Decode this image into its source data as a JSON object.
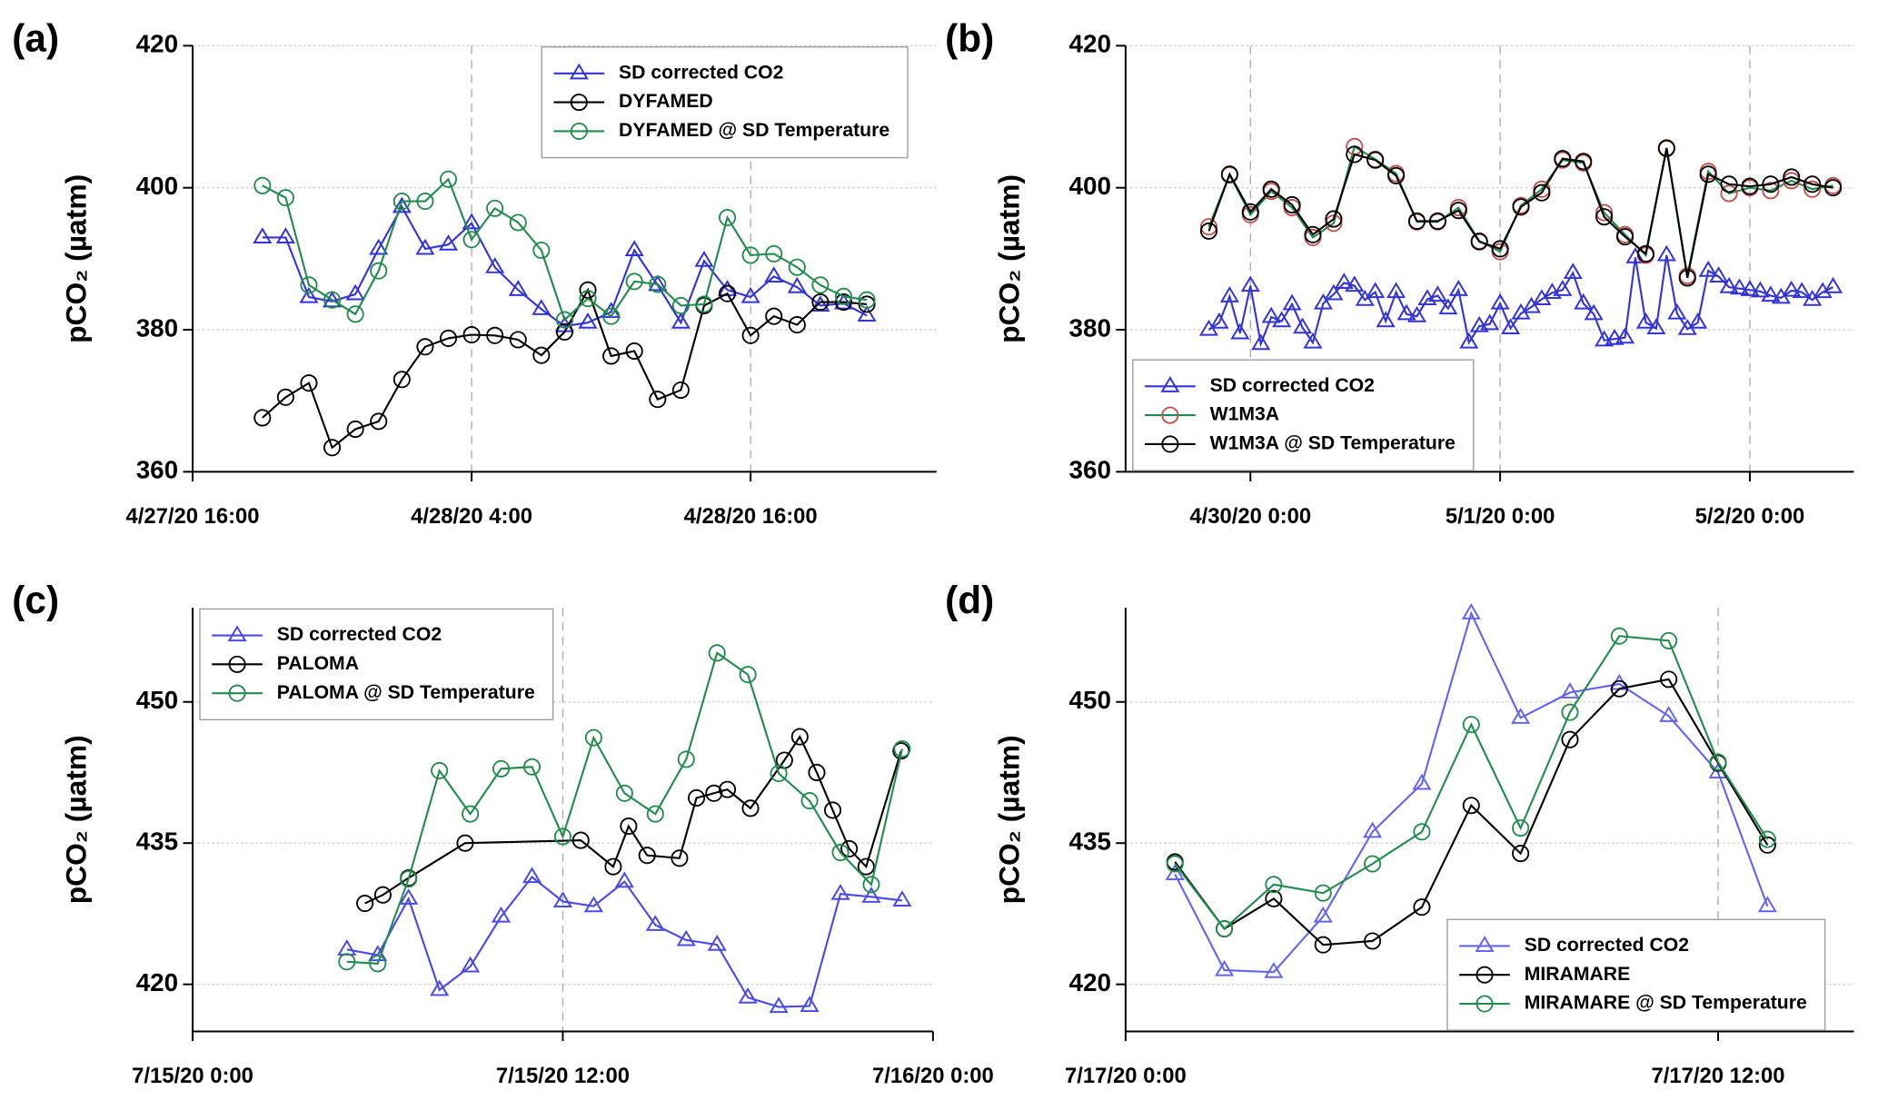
{
  "chart_data": [
    {
      "type": "line",
      "panel_label": "(a)",
      "ylabel": "pCO₂ (µatm)",
      "legend": "upper right",
      "grid": true,
      "x_grid": "dashed",
      "xlim": [
        "2020-04-27T16:00",
        "2020-04-29T00:00"
      ],
      "xticks": [
        {
          "value": "2020-04-27T16:00",
          "label": "4/27/20 16:00"
        },
        {
          "value": "2020-04-28T04:00",
          "label": "4/28/20 4:00"
        },
        {
          "value": "2020-04-28T16:00",
          "label": "4/28/20 16:00"
        }
      ],
      "ylim": [
        360,
        420
      ],
      "yticks": [
        360,
        380,
        400,
        420
      ],
      "x": [
        "2020-04-27T19:00",
        "2020-04-27T20:00",
        "2020-04-27T21:00",
        "2020-04-27T22:00",
        "2020-04-27T23:00",
        "2020-04-28T00:00",
        "2020-04-28T01:00",
        "2020-04-28T02:00",
        "2020-04-28T03:00",
        "2020-04-28T04:00",
        "2020-04-28T05:00",
        "2020-04-28T06:00",
        "2020-04-28T07:00",
        "2020-04-28T08:00",
        "2020-04-28T09:00",
        "2020-04-28T10:00",
        "2020-04-28T11:00",
        "2020-04-28T12:00",
        "2020-04-28T13:00",
        "2020-04-28T14:00",
        "2020-04-28T15:00",
        "2020-04-28T16:00",
        "2020-04-28T17:00",
        "2020-04-28T18:00",
        "2020-04-28T19:00",
        "2020-04-28T20:00",
        "2020-04-28T21:00"
      ],
      "series": [
        {
          "name": "SD corrected CO2",
          "color": "#3434d6",
          "marker": "triangle",
          "values": [
            393,
            393,
            384.6,
            384,
            385,
            391.4,
            397.3,
            391.4,
            392,
            395,
            388.8,
            385.6,
            382.9,
            380.5,
            381,
            382.5,
            391.2,
            386.3,
            381,
            389.7,
            385.6,
            384.6,
            387.5,
            386,
            383.4,
            383.7,
            382
          ]
        },
        {
          "name": "DYFAMED",
          "color": "#000000",
          "marker": "circle",
          "values": [
            367.6,
            370.5,
            372.5,
            363.4,
            366,
            367.1,
            373,
            377.6,
            378.8,
            379.3,
            379.2,
            378.6,
            376.4,
            379.7,
            385.6,
            376.3,
            377,
            370.2,
            371.5,
            383.4,
            385.1,
            379.2,
            381.9,
            380.7,
            383.9,
            383.9,
            383.6
          ]
        },
        {
          "name": "DYFAMED @ SD Temperature",
          "color": "#238b4e",
          "marker": "circle",
          "values": [
            400.3,
            398.6,
            386.3,
            384.2,
            382.2,
            388.3,
            398.1,
            398.1,
            401.2,
            392.7,
            397.1,
            395.1,
            391.2,
            381.4,
            384.4,
            381.9,
            386.8,
            386.4,
            383.4,
            383.6,
            395.8,
            390.5,
            390.7,
            388.8,
            386.3,
            384.7,
            384.2
          ]
        }
      ]
    },
    {
      "type": "line",
      "panel_label": "(b)",
      "ylabel": "pCO₂ (µatm)",
      "legend": "lower left",
      "grid": true,
      "x_grid": "dashed",
      "xlim": [
        "2020-04-29T12:00",
        "2020-05-02T10:00"
      ],
      "xticks": [
        {
          "value": "2020-04-30T00:00",
          "label": "4/30/20 0:00"
        },
        {
          "value": "2020-05-01T00:00",
          "label": "5/1/20 0:00"
        },
        {
          "value": "2020-05-02T00:00",
          "label": "5/2/20 0:00"
        }
      ],
      "ylim": [
        360,
        420
      ],
      "yticks": [
        360,
        380,
        400,
        420
      ],
      "series": [
        {
          "name": "SD corrected CO2",
          "color": "#3434d6",
          "marker": "triangle",
          "x": [
            "2020-04-29T20:00",
            "2020-04-29T21:00",
            "2020-04-29T22:00",
            "2020-04-29T23:00",
            "2020-04-30T00:00",
            "2020-04-30T01:00",
            "2020-04-30T02:00",
            "2020-04-30T03:00",
            "2020-04-30T04:00",
            "2020-04-30T05:00",
            "2020-04-30T06:00",
            "2020-04-30T07:00",
            "2020-04-30T08:00",
            "2020-04-30T09:00",
            "2020-04-30T10:00",
            "2020-04-30T11:00",
            "2020-04-30T12:00",
            "2020-04-30T13:00",
            "2020-04-30T14:00",
            "2020-04-30T15:00",
            "2020-04-30T16:00",
            "2020-04-30T17:00",
            "2020-04-30T18:00",
            "2020-04-30T19:00",
            "2020-04-30T20:00",
            "2020-04-30T21:00",
            "2020-04-30T22:00",
            "2020-04-30T23:00",
            "2020-05-01T00:00",
            "2020-05-01T01:00",
            "2020-05-01T02:00",
            "2020-05-01T03:00",
            "2020-05-01T04:00",
            "2020-05-01T05:00",
            "2020-05-01T06:00",
            "2020-05-01T07:00",
            "2020-05-01T08:00",
            "2020-05-01T09:00",
            "2020-05-01T10:00",
            "2020-05-01T11:00",
            "2020-05-01T12:00",
            "2020-05-01T13:00",
            "2020-05-01T14:00",
            "2020-05-01T15:00",
            "2020-05-01T16:00",
            "2020-05-01T17:00",
            "2020-05-01T18:00",
            "2020-05-01T19:00",
            "2020-05-01T20:00",
            "2020-05-01T21:00",
            "2020-05-01T22:00",
            "2020-05-01T23:00",
            "2020-05-02T00:00",
            "2020-05-02T01:00",
            "2020-05-02T02:00",
            "2020-05-02T03:00",
            "2020-05-02T04:00",
            "2020-05-02T05:00",
            "2020-05-02T06:00",
            "2020-05-02T07:00",
            "2020-05-02T08:00"
          ],
          "values": [
            380,
            381,
            384.7,
            379.5,
            386.2,
            378,
            381.8,
            381.2,
            383.6,
            380.3,
            378.2,
            383.7,
            385,
            386.6,
            386.2,
            384.2,
            385.3,
            381.2,
            385.3,
            382.2,
            381.9,
            384.3,
            384.8,
            383,
            385.6,
            378.2,
            380.5,
            380.8,
            383.7,
            380.2,
            382.3,
            383.2,
            384.3,
            385.2,
            385.6,
            388,
            383.7,
            382.2,
            378.5,
            378.7,
            378.9,
            390.2,
            381,
            380.2,
            390.5,
            382.3,
            380.1,
            381,
            388.3,
            387.5,
            386,
            385.8,
            385.6,
            385.4,
            384.8,
            384.5,
            385.5,
            385.3,
            384.2,
            385.3,
            386
          ]
        },
        {
          "name": "W1M3A",
          "color": "#238b4e",
          "marker": "circle",
          "marker_color": "#c0504d",
          "x": [
            "2020-04-29T20:00",
            "2020-04-29T22:00",
            "2020-04-30T00:00",
            "2020-04-30T02:00",
            "2020-04-30T04:00",
            "2020-04-30T06:00",
            "2020-04-30T08:00",
            "2020-04-30T10:00",
            "2020-04-30T12:00",
            "2020-04-30T14:00",
            "2020-04-30T16:00",
            "2020-04-30T18:00",
            "2020-04-30T20:00",
            "2020-04-30T22:00",
            "2020-05-01T00:00",
            "2020-05-01T02:00",
            "2020-05-01T04:00",
            "2020-05-01T06:00",
            "2020-05-01T08:00",
            "2020-05-01T10:00",
            "2020-05-01T12:00",
            "2020-05-01T14:00",
            "2020-05-01T16:00",
            "2020-05-01T18:00",
            "2020-05-01T20:00",
            "2020-05-01T22:00",
            "2020-05-02T00:00",
            "2020-05-02T02:00",
            "2020-05-02T04:00",
            "2020-05-02T06:00",
            "2020-05-02T08:00"
          ],
          "values": [
            394.5,
            401.8,
            396.2,
            399.5,
            397.2,
            393,
            395,
            405.8,
            404,
            402,
            395.2,
            395.2,
            397.2,
            392.5,
            391,
            397.5,
            399.8,
            403.9,
            403.5,
            396.5,
            393.4,
            390.5,
            405.5,
            387.6,
            402.3,
            399.2,
            400,
            399.6,
            401,
            399.8,
            400.3
          ]
        },
        {
          "name": "W1M3A @ SD Temperature",
          "color": "#000000",
          "marker": "circle",
          "x": [
            "2020-04-29T20:00",
            "2020-04-29T22:00",
            "2020-04-30T00:00",
            "2020-04-30T02:00",
            "2020-04-30T04:00",
            "2020-04-30T06:00",
            "2020-04-30T08:00",
            "2020-04-30T10:00",
            "2020-04-30T12:00",
            "2020-04-30T14:00",
            "2020-04-30T16:00",
            "2020-04-30T18:00",
            "2020-04-30T20:00",
            "2020-04-30T22:00",
            "2020-05-01T00:00",
            "2020-05-01T02:00",
            "2020-05-01T04:00",
            "2020-05-01T06:00",
            "2020-05-01T08:00",
            "2020-05-01T10:00",
            "2020-05-01T12:00",
            "2020-05-01T14:00",
            "2020-05-01T16:00",
            "2020-05-01T18:00",
            "2020-05-01T20:00",
            "2020-05-01T22:00",
            "2020-05-02T00:00",
            "2020-05-02T02:00",
            "2020-05-02T04:00",
            "2020-05-02T06:00",
            "2020-05-02T08:00"
          ],
          "values": [
            393.9,
            401.9,
            396.6,
            399.8,
            397.6,
            393.4,
            395.6,
            404.7,
            403.9,
            401.7,
            395.3,
            395.3,
            396.8,
            392.4,
            391.4,
            397.3,
            399.3,
            404.1,
            403.7,
            395.9,
            393.1,
            390.7,
            405.6,
            387.3,
            401.9,
            400.5,
            400.2,
            400.5,
            401.5,
            400.5,
            400
          ]
        }
      ]
    },
    {
      "type": "line",
      "panel_label": "(c)",
      "ylabel": "pCO₂ (µatm)",
      "legend": "upper left",
      "grid": true,
      "x_grid": "dashed",
      "xlim": [
        "2020-07-15T00:00",
        "2020-07-16T00:00"
      ],
      "xticks": [
        {
          "value": "2020-07-15T00:00",
          "label": "7/15/20 0:00"
        },
        {
          "value": "2020-07-15T12:00",
          "label": "7/15/20 12:00"
        },
        {
          "value": "2020-07-16T00:00",
          "label": "7/16/20 0:00"
        }
      ],
      "ylim": [
        415,
        460
      ],
      "yticks": [
        420,
        435,
        450
      ],
      "series": [
        {
          "name": "SD corrected CO2",
          "color": "#4a4ae6",
          "marker": "triangle",
          "x": [
            "2020-07-15T05:00",
            "2020-07-15T06:00",
            "2020-07-15T07:00",
            "2020-07-15T08:00",
            "2020-07-15T09:00",
            "2020-07-15T10:00",
            "2020-07-15T11:00",
            "2020-07-15T12:00",
            "2020-07-15T13:00",
            "2020-07-15T14:00",
            "2020-07-15T15:00",
            "2020-07-15T16:00",
            "2020-07-15T17:00",
            "2020-07-15T18:00",
            "2020-07-15T19:00",
            "2020-07-15T20:00",
            "2020-07-15T21:00",
            "2020-07-15T22:00",
            "2020-07-15T23:00"
          ],
          "values": [
            423.7,
            423.1,
            429.1,
            419.4,
            421.9,
            427.2,
            431.4,
            428.8,
            428.3,
            430.9,
            426.3,
            424.7,
            424.2,
            418.6,
            417.6,
            417.7,
            429.6,
            429.3,
            428.9
          ]
        },
        {
          "name": "PALOMA",
          "color": "#000000",
          "marker": "circle",
          "x": [
            "2020-07-15T05:35",
            "2020-07-15T06:10",
            "2020-07-15T07:00",
            "2020-07-15T08:50",
            "2020-07-15T12:35",
            "2020-07-15T13:38",
            "2020-07-15T14:08",
            "2020-07-15T14:44",
            "2020-07-15T15:47",
            "2020-07-15T16:20",
            "2020-07-15T16:54",
            "2020-07-15T17:20",
            "2020-07-15T18:05",
            "2020-07-15T19:11",
            "2020-07-15T19:41",
            "2020-07-15T20:14",
            "2020-07-15T20:45",
            "2020-07-15T21:17",
            "2020-07-15T21:50",
            "2020-07-15T22:58"
          ],
          "values": [
            428.6,
            429.5,
            431.3,
            435,
            435.3,
            432.5,
            436.8,
            433.7,
            433.4,
            439.8,
            440.3,
            440.7,
            438.7,
            443.8,
            446.3,
            442.5,
            438.5,
            434.4,
            432.5,
            444.8
          ]
        },
        {
          "name": "PALOMA @ SD Temperature",
          "color": "#238b4e",
          "marker": "circle",
          "x": [
            "2020-07-15T05:00",
            "2020-07-15T06:00",
            "2020-07-15T07:00",
            "2020-07-15T08:00",
            "2020-07-15T09:00",
            "2020-07-15T10:00",
            "2020-07-15T11:00",
            "2020-07-15T12:00",
            "2020-07-15T13:00",
            "2020-07-15T14:00",
            "2020-07-15T15:00",
            "2020-07-15T16:00",
            "2020-07-15T17:00",
            "2020-07-15T18:00",
            "2020-07-15T19:00",
            "2020-07-15T20:00",
            "2020-07-15T21:00",
            "2020-07-15T22:00",
            "2020-07-15T23:00"
          ],
          "values": [
            422.4,
            422.2,
            431.2,
            442.7,
            438.1,
            442.9,
            443.1,
            435.7,
            446.2,
            440.3,
            438.1,
            443.9,
            455.2,
            452.9,
            442.4,
            439.5,
            434,
            430.6,
            445
          ]
        }
      ]
    },
    {
      "type": "line",
      "panel_label": "(d)",
      "ylabel": "pCO₂ (µatm)",
      "legend": "lower right",
      "grid": true,
      "x_grid": "dashed",
      "xlim": [
        "2020-07-17T00:00",
        "2020-07-17T14:45"
      ],
      "xticks": [
        {
          "value": "2020-07-17T00:00",
          "label": "7/17/20 0:00"
        },
        {
          "value": "2020-07-17T12:00",
          "label": "7/17/20 12:00"
        }
      ],
      "ylim": [
        415,
        460
      ],
      "yticks": [
        420,
        435,
        450
      ],
      "x": [
        "2020-07-17T01:00",
        "2020-07-17T02:00",
        "2020-07-17T03:00",
        "2020-07-17T04:00",
        "2020-07-17T05:00",
        "2020-07-17T06:00",
        "2020-07-17T07:00",
        "2020-07-17T08:00",
        "2020-07-17T09:00",
        "2020-07-17T10:00",
        "2020-07-17T11:00",
        "2020-07-17T12:00",
        "2020-07-17T13:00"
      ],
      "series": [
        {
          "name": "SD corrected CO2",
          "color": "#6464ee",
          "marker": "triangle",
          "values": [
            431.7,
            421.5,
            421.3,
            427.2,
            436.2,
            441.3,
            459.4,
            448.3,
            451,
            451.9,
            448.5,
            442.5,
            428.3
          ]
        },
        {
          "name": "MIRAMARE",
          "color": "#000000",
          "marker": "circle",
          "values": [
            433,
            425.9,
            429.1,
            424.2,
            424.6,
            428.2,
            439,
            433.9,
            446,
            451.4,
            452.4,
            443.5,
            434.8
          ]
        },
        {
          "name": "MIRAMARE @ SD Temperature",
          "color": "#238b4e",
          "marker": "circle",
          "values": [
            432.8,
            425.9,
            430.6,
            429.7,
            432.8,
            436.2,
            447.6,
            436.6,
            448.9,
            457,
            456.5,
            443.6,
            435.4
          ]
        }
      ]
    }
  ]
}
